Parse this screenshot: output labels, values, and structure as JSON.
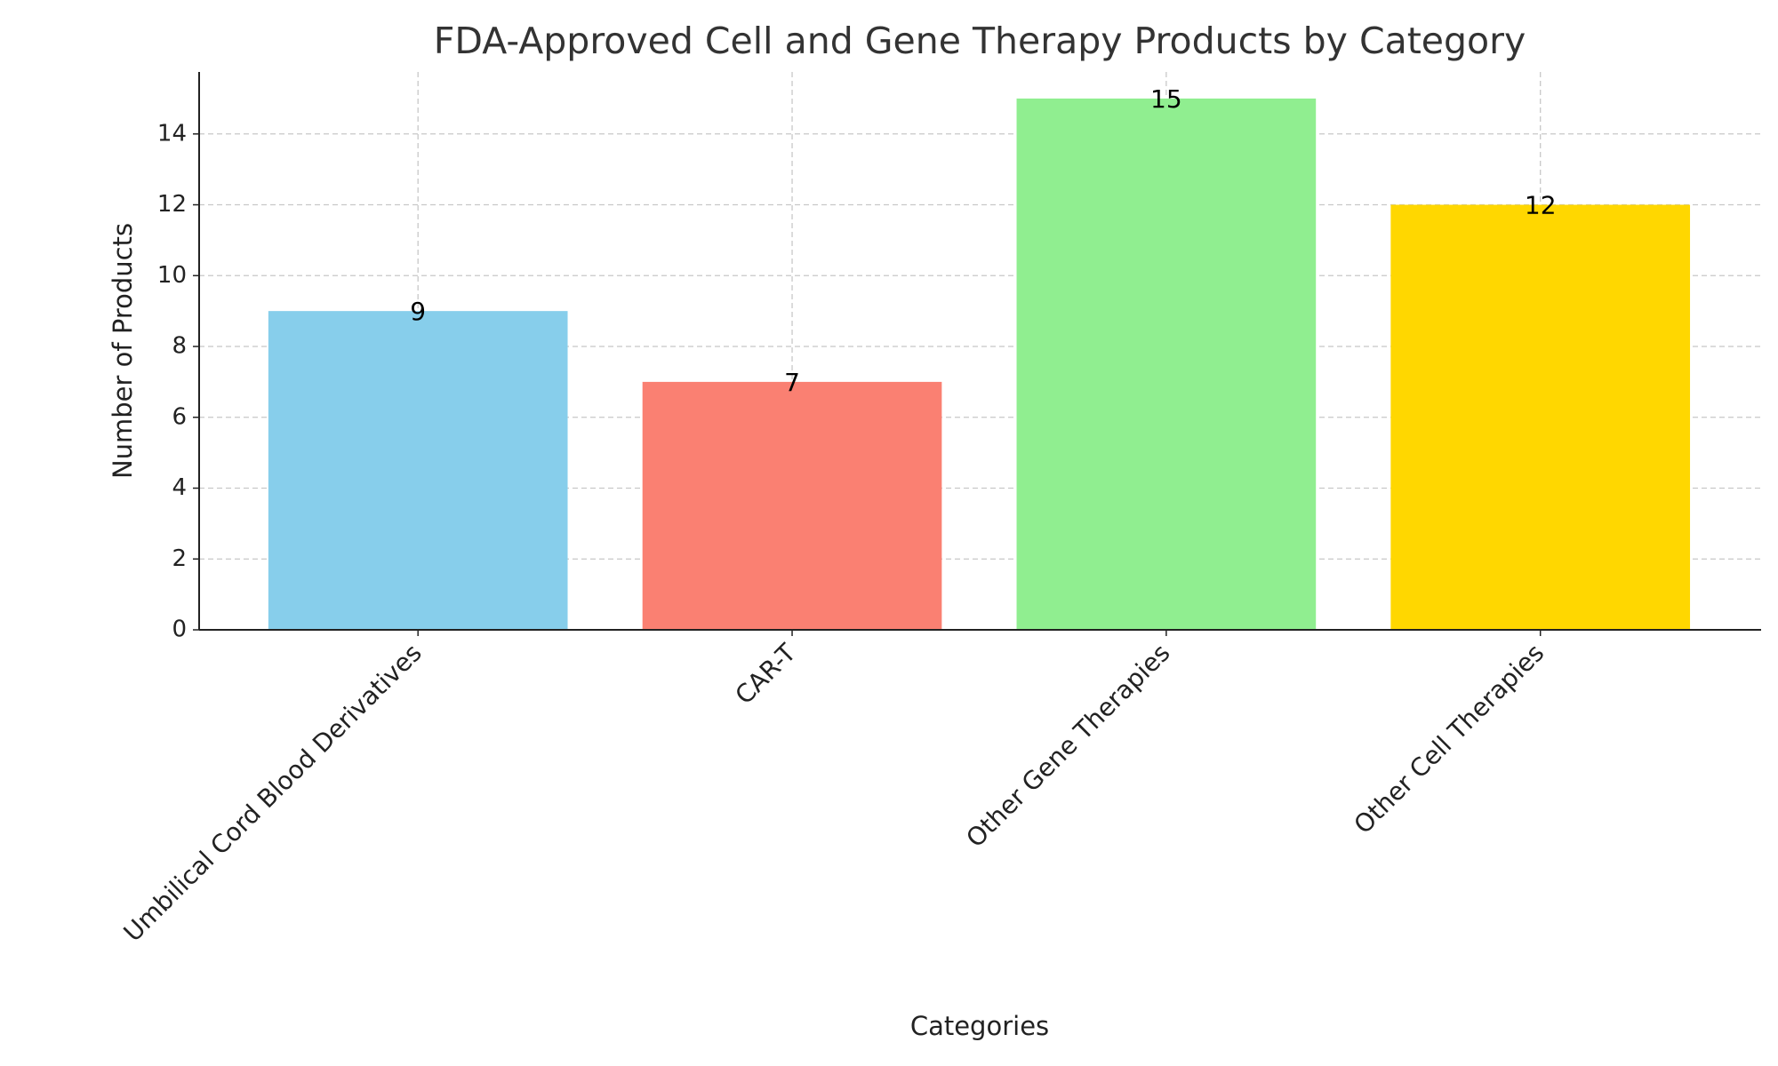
{
  "chart_data": {
    "type": "bar",
    "title": "FDA-Approved Cell and Gene Therapy Products by Category",
    "x_label": "Categories",
    "y_label": "Number of Products",
    "categories": [
      "Umbilical Cord Blood Derivatives",
      "CAR-T",
      "Other Gene Therapies",
      "Other Cell Therapies"
    ],
    "values": [
      9,
      7,
      15,
      12
    ],
    "colors": [
      "#87ceeb",
      "#fa8072",
      "#90ee90",
      "#ffd700"
    ],
    "ylim": [
      0,
      15.75
    ],
    "yticks": [
      0,
      2,
      4,
      6,
      8,
      10,
      12,
      14
    ],
    "grid": true
  }
}
